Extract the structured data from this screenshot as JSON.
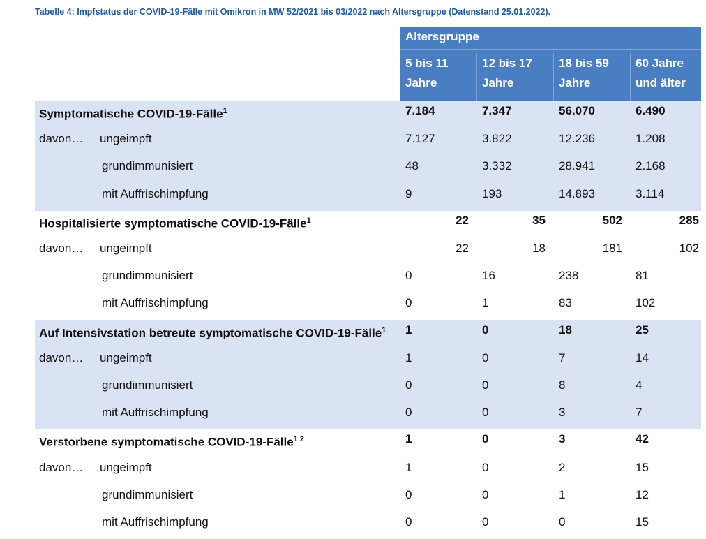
{
  "title": "Tabelle 4: Impfstatus der COVID-19-Fälle mit Omikron in MW 52/2021 bis 03/2022 nach Altersgruppe (Datenstand 25.01.2022).",
  "header": {
    "group": "Altersgruppe",
    "columns": [
      [
        "5 bis 11",
        "Jahre"
      ],
      [
        "12 bis 17",
        "Jahre"
      ],
      [
        "18 bis 59",
        "Jahre"
      ],
      [
        "60 Jahre",
        "und älter"
      ]
    ]
  },
  "sections": [
    {
      "label": "Symptomatische COVID-19-Fälle",
      "footnote": "1",
      "values": [
        "7.184",
        "7.347",
        "56.070",
        "6.490"
      ],
      "rows": [
        {
          "prefix": "davon…",
          "label": "ungeimpft",
          "values": [
            "7.127",
            "3.822",
            "12.236",
            "1.208"
          ]
        },
        {
          "label": "grundimmunisiert",
          "values": [
            "48",
            "3.332",
            "28.941",
            "2.168"
          ]
        },
        {
          "label": "mit Auffrischimpfung",
          "values": [
            "9",
            "193",
            "14.893",
            "3.114"
          ]
        }
      ]
    },
    {
      "label": "Hospitalisierte symptomatische COVID-19-Fälle",
      "footnote": "1",
      "values": [
        "22",
        "35",
        "502",
        "285"
      ],
      "rows": [
        {
          "prefix": "davon…",
          "label": "ungeimpft",
          "values": [
            "22",
            "18",
            "181",
            "102"
          ]
        },
        {
          "label": "grundimmunisiert",
          "values": [
            "0",
            "16",
            "238",
            "81"
          ]
        },
        {
          "label": "mit Auffrischimpfung",
          "values": [
            "0",
            "1",
            "83",
            "102"
          ]
        }
      ]
    },
    {
      "label": "Auf Intensivstation betreute symptomatische COVID-19-Fälle",
      "footnote": "1",
      "values": [
        "1",
        "0",
        "18",
        "25"
      ],
      "rows": [
        {
          "prefix": "davon…",
          "label": "ungeimpft",
          "values": [
            "1",
            "0",
            "7",
            "14"
          ]
        },
        {
          "label": "grundimmunisiert",
          "values": [
            "0",
            "0",
            "8",
            "4"
          ]
        },
        {
          "label": "mit Auffrischimpfung",
          "values": [
            "0",
            "0",
            "3",
            "7"
          ]
        }
      ]
    },
    {
      "label": "Verstorbene symptomatische COVID-19-Fälle",
      "footnote": "1 2",
      "values": [
        "1",
        "0",
        "3",
        "42"
      ],
      "rows": [
        {
          "prefix": "davon…",
          "label": "ungeimpft",
          "values": [
            "1",
            "0",
            "2",
            "15"
          ]
        },
        {
          "label": "grundimmunisiert",
          "values": [
            "0",
            "0",
            "1",
            "12"
          ]
        },
        {
          "label": "mit Auffrischimpfung",
          "values": [
            "0",
            "0",
            "0",
            "15"
          ]
        }
      ]
    }
  ]
}
